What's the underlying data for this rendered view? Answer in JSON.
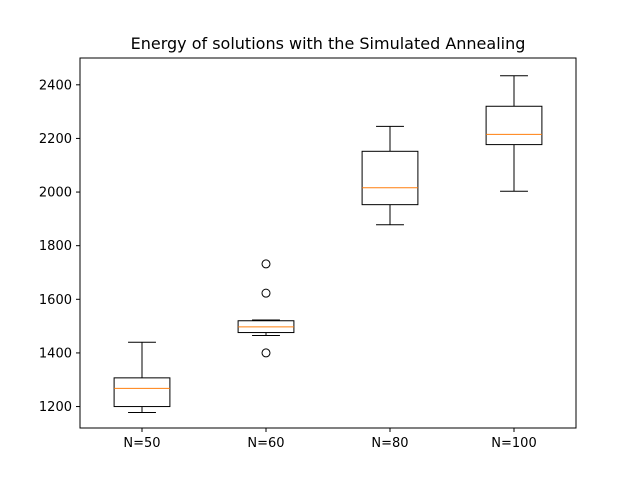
{
  "chart_data": {
    "type": "box",
    "title": "Energy of solutions with the Simulated Annealing",
    "xlabel": "",
    "ylabel": "",
    "ylim": [
      1120,
      2500
    ],
    "yticks": [
      1200,
      1400,
      1600,
      1800,
      2000,
      2200,
      2400
    ],
    "grid": false,
    "categories": [
      "N=50",
      "N=60",
      "N=80",
      "N=100"
    ],
    "boxes": [
      {
        "whisker_low": 1178,
        "q1": 1200,
        "median": 1268,
        "q3": 1307,
        "whisker_high": 1440,
        "outliers": []
      },
      {
        "whisker_low": 1465,
        "q1": 1476,
        "median": 1497,
        "q3": 1520,
        "whisker_high": 1523,
        "outliers": [
          1400,
          1623,
          1732
        ]
      },
      {
        "whisker_low": 1878,
        "q1": 1953,
        "median": 2016,
        "q3": 2152,
        "whisker_high": 2245,
        "outliers": []
      },
      {
        "whisker_low": 2003,
        "q1": 2177,
        "median": 2215,
        "q3": 2320,
        "whisker_high": 2434,
        "outliers": []
      }
    ],
    "colors": {
      "box": "#000000",
      "median": "#ff7f0e"
    }
  }
}
